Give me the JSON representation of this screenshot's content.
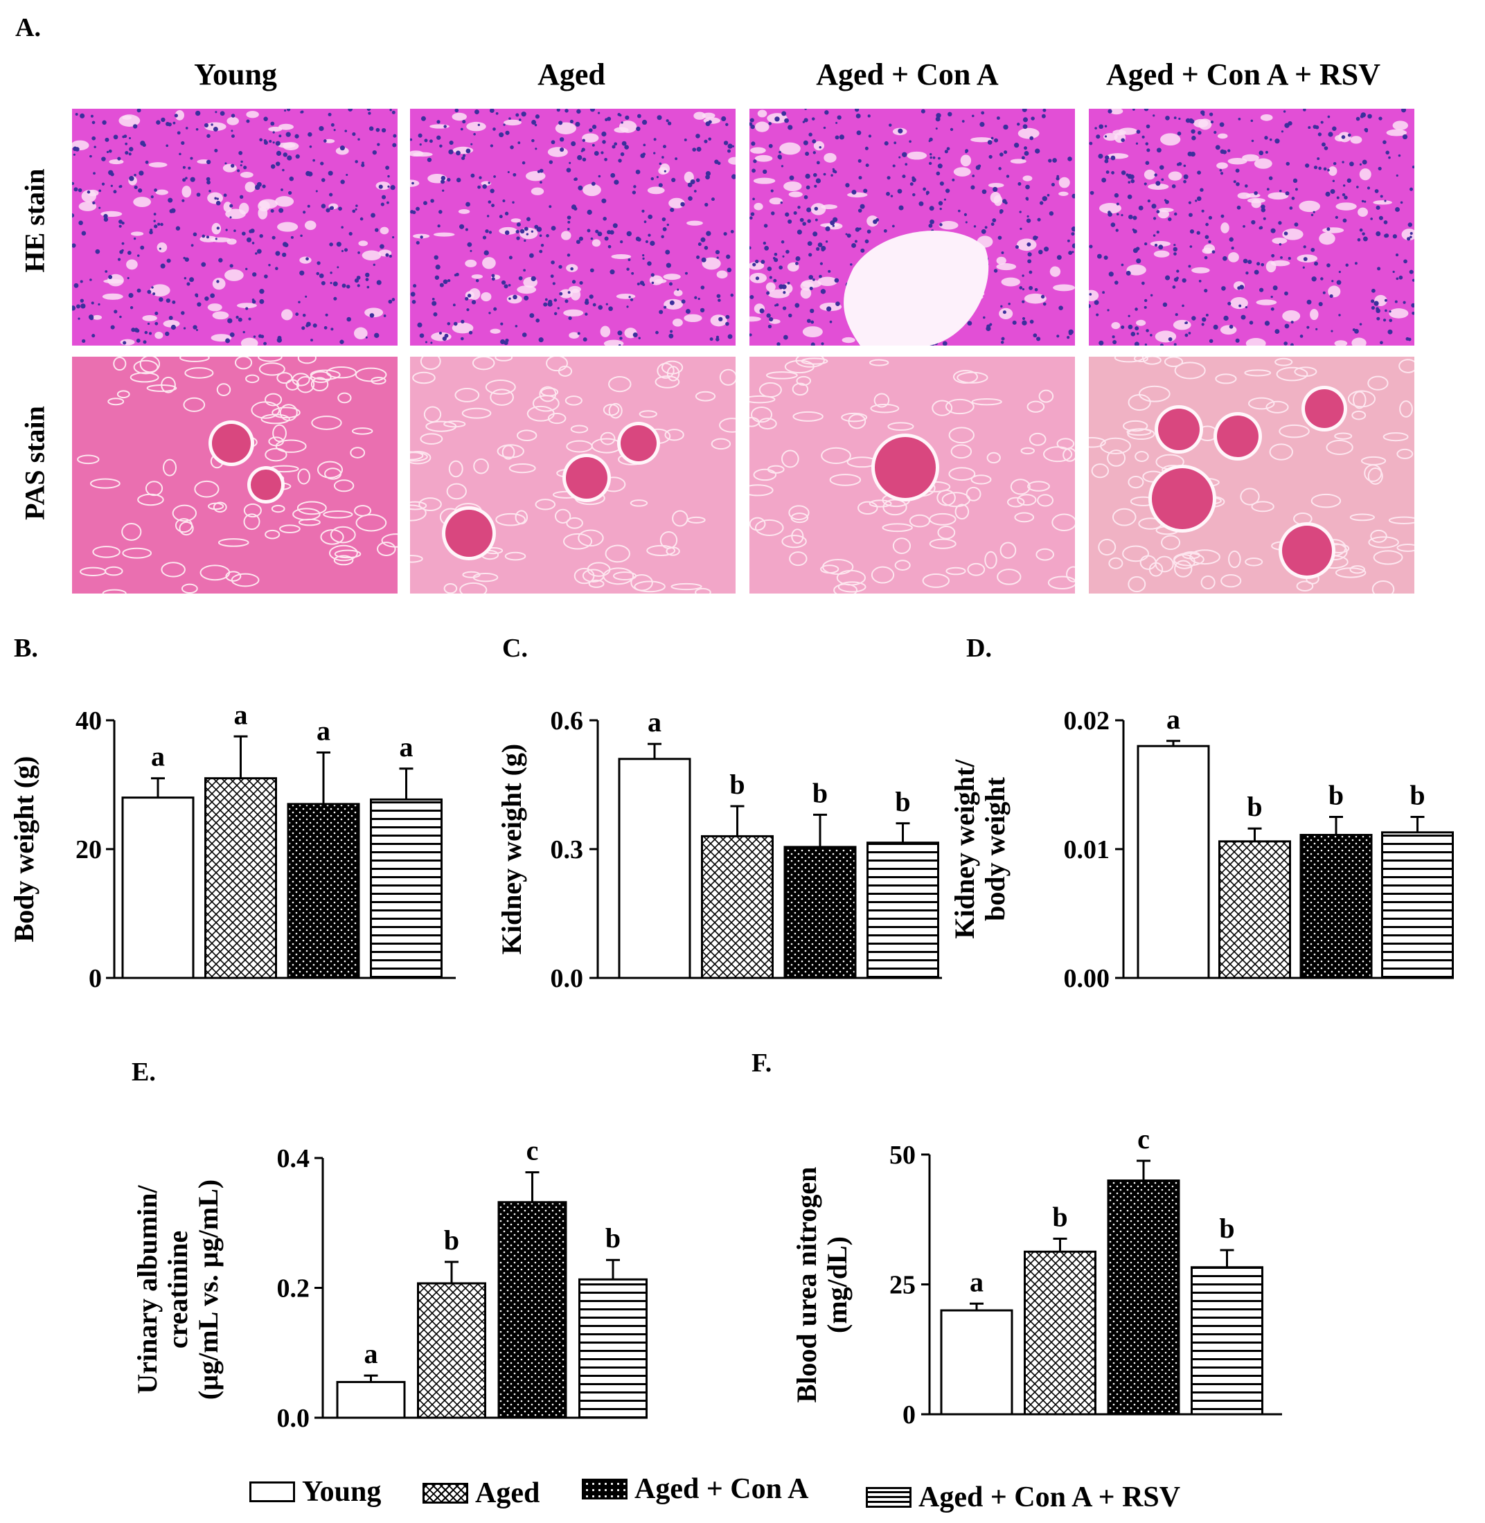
{
  "panel_a": {
    "label": "A.",
    "columns": [
      "Young",
      "Aged",
      "Aged + Con A",
      "Aged + Con A + RSV"
    ],
    "rows": [
      "HE stain",
      "PAS stain"
    ]
  },
  "legend": {
    "items": [
      "Young",
      "Aged",
      "Aged + Con A",
      "Aged + Con A + RSV"
    ]
  },
  "chart_data": [
    {
      "id": "B",
      "label": "B.",
      "type": "bar",
      "categories": [
        "Young",
        "Aged",
        "Aged + Con A",
        "Aged + Con A + RSV"
      ],
      "values": [
        28,
        31,
        27,
        27.7
      ],
      "errors": [
        3,
        6.5,
        8,
        4.8
      ],
      "letters": [
        "a",
        "a",
        "a",
        "a"
      ],
      "ylabel": [
        "Body weight  (g)"
      ],
      "ylim": [
        0,
        40
      ],
      "yticks": [
        0,
        20,
        40
      ],
      "ytick_labels": [
        "0",
        "20",
        "40"
      ]
    },
    {
      "id": "C",
      "label": "C.",
      "type": "bar",
      "categories": [
        "Young",
        "Aged",
        "Aged + Con A",
        "Aged + Con A + RSV"
      ],
      "values": [
        0.51,
        0.33,
        0.305,
        0.315
      ],
      "errors": [
        0.035,
        0.07,
        0.075,
        0.045
      ],
      "letters": [
        "a",
        "b",
        "b",
        "b"
      ],
      "ylabel": [
        "Kidney weight  (g)"
      ],
      "ylim": [
        0,
        0.6
      ],
      "yticks": [
        0,
        0.3,
        0.6
      ],
      "ytick_labels": [
        "0.0",
        "0.3",
        "0.6"
      ]
    },
    {
      "id": "D",
      "label": "D.",
      "type": "bar",
      "categories": [
        "Young",
        "Aged",
        "Aged + Con A",
        "Aged + Con A + RSV"
      ],
      "values": [
        0.018,
        0.0106,
        0.0111,
        0.0113
      ],
      "errors": [
        0.0004,
        0.001,
        0.0014,
        0.0012
      ],
      "letters": [
        "a",
        "b",
        "b",
        "b"
      ],
      "ylabel": [
        "Kidney weight/",
        "body weight"
      ],
      "ylim": [
        0,
        0.02
      ],
      "yticks": [
        0,
        0.01,
        0.02
      ],
      "ytick_labels": [
        "0.00",
        "0.01",
        "0.02"
      ]
    },
    {
      "id": "E",
      "label": "E.",
      "type": "bar",
      "categories": [
        "Young",
        "Aged",
        "Aged + Con A",
        "Aged + Con A + RSV"
      ],
      "values": [
        0.055,
        0.207,
        0.332,
        0.213
      ],
      "errors": [
        0.01,
        0.033,
        0.046,
        0.03
      ],
      "letters": [
        "a",
        "b",
        "c",
        "b"
      ],
      "ylabel": [
        "Urinary  albumin/",
        "creatinine",
        "(µg/mL  vs. µg/mL)"
      ],
      "ylim": [
        0,
        0.4
      ],
      "yticks": [
        0,
        0.2,
        0.4
      ],
      "ytick_labels": [
        "0.0",
        "0.2",
        "0.4"
      ]
    },
    {
      "id": "F",
      "label": "F.",
      "type": "bar",
      "categories": [
        "Young",
        "Aged",
        "Aged + Con A",
        "Aged + Con A + RSV"
      ],
      "values": [
        20,
        31.3,
        45,
        28.3
      ],
      "errors": [
        1.3,
        2.5,
        3.8,
        3.3
      ],
      "letters": [
        "a",
        "b",
        "c",
        "b"
      ],
      "ylabel": [
        "Blood urea nitrogen",
        "(mg/dL)"
      ],
      "ylim": [
        0,
        50
      ],
      "yticks": [
        0,
        25,
        50
      ],
      "ytick_labels": [
        "0",
        "25",
        "50"
      ]
    }
  ],
  "colors": {
    "he_stain_base": "#e24fd6",
    "he_stain_nuclei": "#3b2f9c",
    "pas_stain_base": "#f2a6c8",
    "pas_glomerulus": "#d9477f",
    "bar_outline": "#000000"
  }
}
